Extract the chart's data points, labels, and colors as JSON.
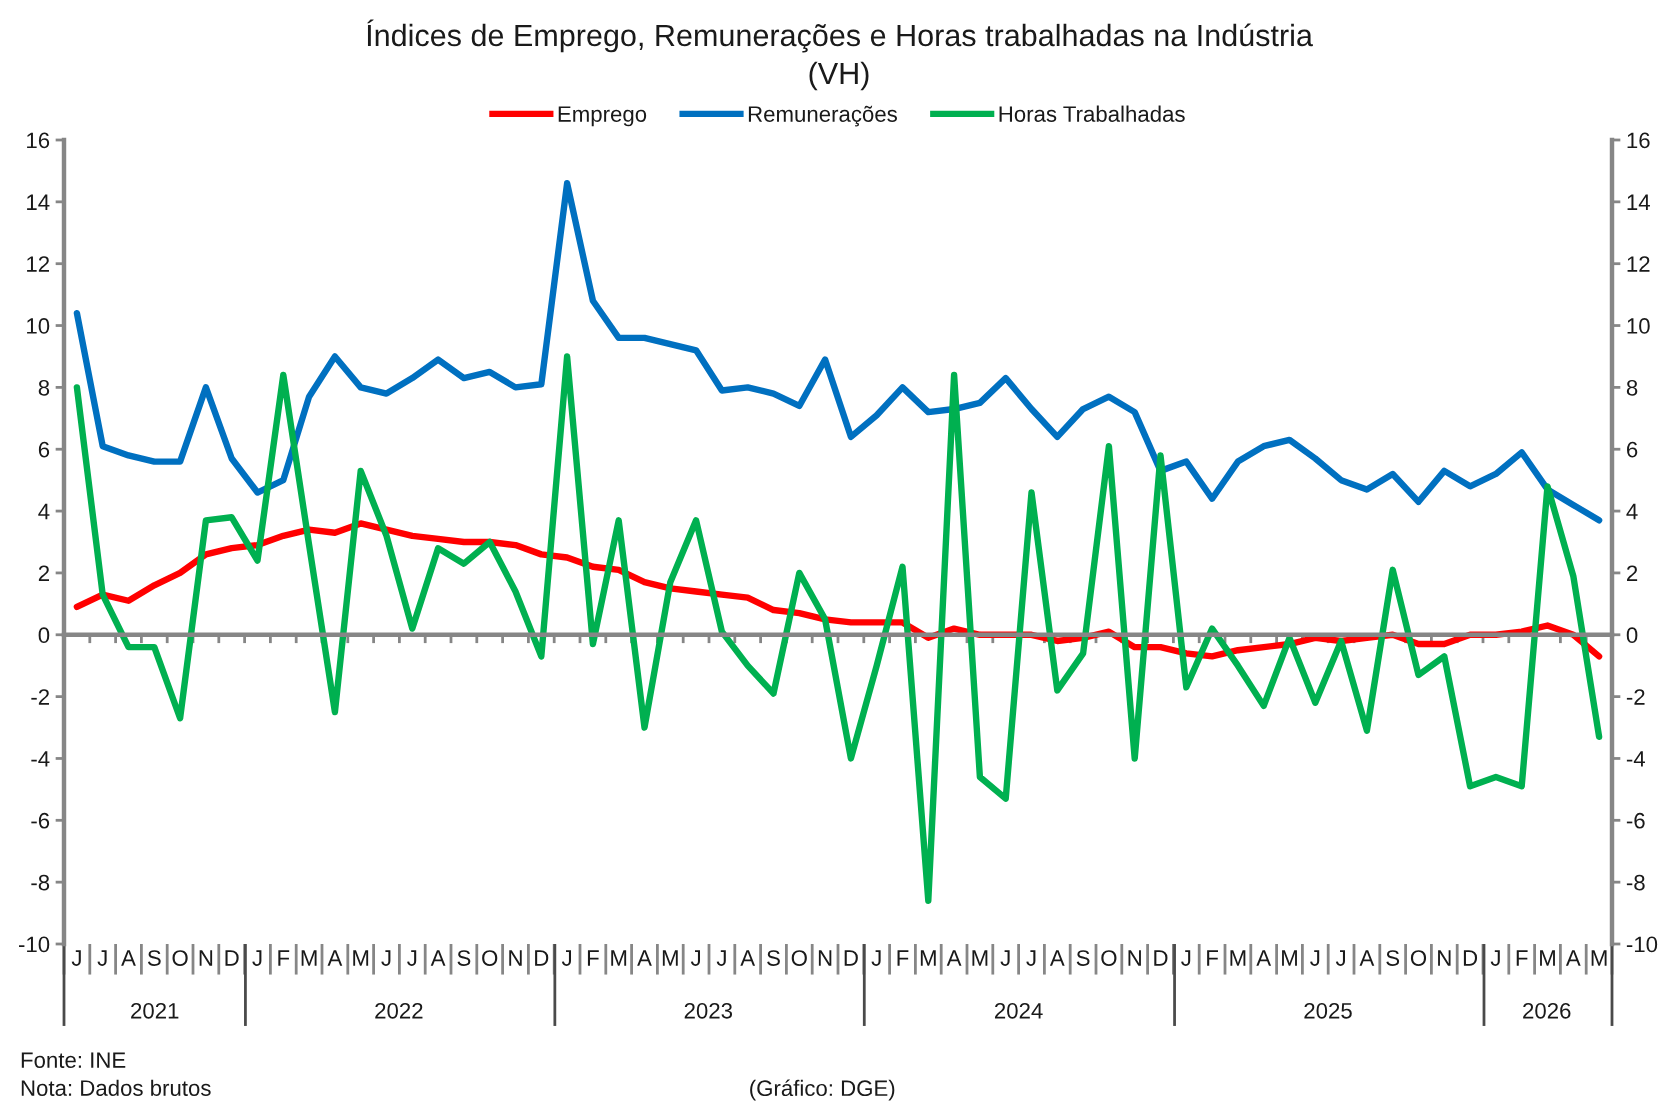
{
  "chart_data": {
    "type": "line",
    "title": "Índices de Emprego, Remunerações e Horas trabalhadas na Indústria",
    "subtitle": "(VH)",
    "categories": [
      "J",
      "J",
      "A",
      "S",
      "O",
      "N",
      "D",
      "J",
      "F",
      "M",
      "A",
      "M",
      "J",
      "J",
      "A",
      "S",
      "O",
      "N",
      "D",
      "J",
      "F",
      "M",
      "A",
      "M",
      "J",
      "J",
      "A",
      "S",
      "O",
      "N",
      "D",
      "J",
      "F",
      "M",
      "A",
      "M",
      "J",
      "J",
      "A",
      "S",
      "O",
      "N",
      "D",
      "J",
      "F",
      "M",
      "A",
      "M",
      "J",
      "J",
      "A",
      "S",
      "O",
      "N",
      "D",
      "J",
      "F",
      "M",
      "A",
      "M"
    ],
    "x2lim": [
      "2021-06-01",
      "2026-06-01"
    ],
    "x2ticks": [
      {
        "value": "2021-09-16",
        "label": "2021"
      },
      {
        "value": "2022-07-01",
        "label": "2022"
      },
      {
        "value": "2023-07-01",
        "label": "2023"
      },
      {
        "value": "2024-07-01",
        "label": "2024"
      },
      {
        "value": "2025-07-01",
        "label": "2025"
      },
      {
        "value": "2026-03-16",
        "label": "2026"
      }
    ],
    "ylim": [
      -10,
      16
    ],
    "yticks": [
      -10,
      -8,
      -6,
      -4,
      -2,
      0,
      2,
      4,
      6,
      8,
      10,
      12,
      14,
      16
    ],
    "y2lim": [
      -10,
      16
    ],
    "y2ticks": [
      -10,
      -8,
      -6,
      -4,
      -2,
      0,
      2,
      4,
      6,
      8,
      10,
      12,
      14,
      16
    ],
    "series": [
      {
        "name": "Emprego",
        "color": "#ff0000",
        "values": [
          0.9,
          1.3,
          1.1,
          1.6,
          2.0,
          2.6,
          2.8,
          2.9,
          3.2,
          3.4,
          3.3,
          3.6,
          3.4,
          3.2,
          3.1,
          3.0,
          3.0,
          2.9,
          2.6,
          2.5,
          2.2,
          2.1,
          1.7,
          1.5,
          1.4,
          1.3,
          1.2,
          0.8,
          0.7,
          0.5,
          0.4,
          0.4,
          0.4,
          -0.1,
          0.2,
          0.0,
          0.0,
          0.0,
          -0.2,
          -0.1,
          0.1,
          -0.4,
          -0.4,
          -0.6,
          -0.7,
          -0.5,
          -0.4,
          -0.3,
          -0.1,
          -0.2,
          -0.1,
          0.0,
          -0.3,
          -0.3,
          0.0,
          0.0,
          0.1,
          0.3,
          0.0,
          -0.7
        ]
      },
      {
        "name": "Remunerações",
        "color": "#0070c0",
        "values": [
          10.4,
          6.1,
          5.8,
          5.6,
          5.6,
          8.0,
          5.7,
          4.6,
          5.0,
          7.7,
          9.0,
          8.0,
          7.8,
          8.3,
          8.9,
          8.3,
          8.5,
          8.0,
          8.1,
          14.6,
          10.8,
          9.6,
          9.6,
          9.4,
          9.2,
          7.9,
          8.0,
          7.8,
          7.4,
          8.9,
          6.4,
          7.1,
          8.0,
          7.2,
          7.3,
          7.5,
          8.3,
          7.3,
          6.4,
          7.3,
          7.7,
          7.2,
          5.3,
          5.6,
          4.4,
          5.6,
          6.1,
          6.3,
          5.7,
          5.0,
          4.7,
          5.2,
          4.3,
          5.3,
          4.8,
          5.2,
          5.9,
          4.7,
          4.2,
          3.7
        ]
      },
      {
        "name": "Horas Trabalhadas",
        "color": "#00b050",
        "values": [
          8.0,
          1.3,
          -0.4,
          -0.4,
          -2.7,
          3.7,
          3.8,
          2.4,
          8.4,
          2.9,
          -2.5,
          5.3,
          3.2,
          0.2,
          2.8,
          2.3,
          3.0,
          1.4,
          -0.7,
          9.0,
          -0.3,
          3.7,
          -3.0,
          1.7,
          3.7,
          0.1,
          -1.0,
          -1.9,
          2.0,
          0.5,
          -4.0,
          -1.0,
          2.2,
          -8.6,
          8.4,
          -4.6,
          -5.3,
          4.6,
          -1.8,
          -0.6,
          6.1,
          -4.0,
          5.8,
          -1.7,
          0.2,
          -1.0,
          -2.3,
          -0.1,
          -2.2,
          -0.2,
          -3.1,
          2.1,
          -1.3,
          -0.7,
          -4.9,
          -4.6,
          -4.9,
          4.8,
          1.9,
          -3.3
        ]
      }
    ],
    "legend": "top",
    "line_style": "solid",
    "annotations": [
      "Fonte: INE",
      "Nota: Dados brutos",
      "(Gráfico: DGE)"
    ]
  }
}
